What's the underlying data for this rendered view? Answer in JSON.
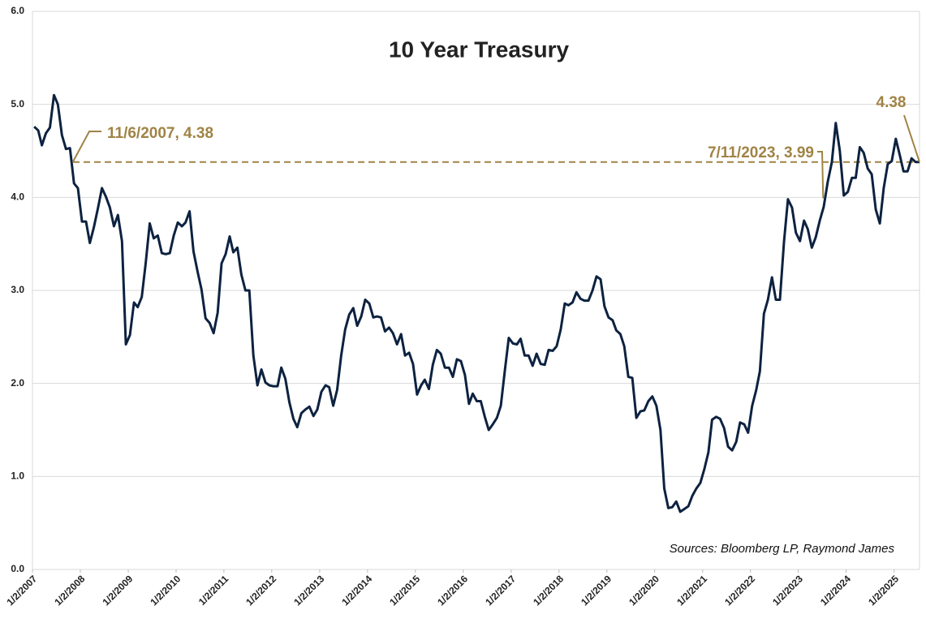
{
  "chart_data": {
    "type": "line",
    "title": "10 Year Treasury",
    "source": "Sources: Bloomberg LP, Raymond James",
    "color": "#0d2240",
    "annotation_color": "#a08345",
    "grid": true,
    "ylim": [
      0,
      6
    ],
    "yticks": [
      {
        "value": 0,
        "label": "0.0"
      },
      {
        "value": 1,
        "label": "1.0"
      },
      {
        "value": 2,
        "label": "2.0"
      },
      {
        "value": 3,
        "label": "3.0"
      },
      {
        "value": 4,
        "label": "4.0"
      },
      {
        "value": 5,
        "label": "5.0"
      },
      {
        "value": 6,
        "label": "6.0"
      }
    ],
    "xlim": [
      "2007-01-02",
      "2025-07-15"
    ],
    "xticks": [
      {
        "value": "2007-01-02",
        "label": "1/2/2007"
      },
      {
        "value": "2008-01-02",
        "label": "1/2/2008"
      },
      {
        "value": "2009-01-02",
        "label": "1/2/2009"
      },
      {
        "value": "2010-01-02",
        "label": "1/2/2010"
      },
      {
        "value": "2011-01-02",
        "label": "1/2/2011"
      },
      {
        "value": "2012-01-02",
        "label": "1/2/2012"
      },
      {
        "value": "2013-01-02",
        "label": "1/2/2013"
      },
      {
        "value": "2014-01-02",
        "label": "1/2/2014"
      },
      {
        "value": "2015-01-02",
        "label": "1/2/2015"
      },
      {
        "value": "2016-01-02",
        "label": "1/2/2016"
      },
      {
        "value": "2017-01-02",
        "label": "1/2/2017"
      },
      {
        "value": "2018-01-02",
        "label": "1/2/2018"
      },
      {
        "value": "2019-01-02",
        "label": "1/2/2019"
      },
      {
        "value": "2020-01-02",
        "label": "1/2/2020"
      },
      {
        "value": "2021-01-02",
        "label": "1/2/2021"
      },
      {
        "value": "2022-01-02",
        "label": "1/2/2022"
      },
      {
        "value": "2023-01-02",
        "label": "1/2/2023"
      },
      {
        "value": "2024-01-02",
        "label": "1/2/2024"
      },
      {
        "value": "2025-01-02",
        "label": "1/2/2025"
      }
    ],
    "reference_line": 4.38,
    "annotations": [
      {
        "text": "11/6/2007, 4.38",
        "x": "2007-11-06",
        "y": 4.38
      },
      {
        "text": "7/11/2023, 3.99",
        "x": "2023-07-11",
        "y": 3.99
      },
      {
        "text": "4.38"
      }
    ],
    "x": [
      "2007-01-15",
      "2007-02-15",
      "2007-03-15",
      "2007-04-15",
      "2007-05-15",
      "2007-06-15",
      "2007-07-15",
      "2007-08-15",
      "2007-09-15",
      "2007-10-15",
      "2007-11-15",
      "2007-12-15",
      "2008-01-15",
      "2008-02-15",
      "2008-03-15",
      "2008-04-15",
      "2008-05-15",
      "2008-06-15",
      "2008-07-15",
      "2008-08-15",
      "2008-09-15",
      "2008-10-15",
      "2008-11-15",
      "2008-12-15",
      "2009-01-15",
      "2009-02-15",
      "2009-03-15",
      "2009-04-15",
      "2009-05-15",
      "2009-06-15",
      "2009-07-15",
      "2009-08-15",
      "2009-09-15",
      "2009-10-15",
      "2009-11-15",
      "2009-12-15",
      "2010-01-15",
      "2010-02-15",
      "2010-03-15",
      "2010-04-15",
      "2010-05-15",
      "2010-06-15",
      "2010-07-15",
      "2010-08-15",
      "2010-09-15",
      "2010-10-15",
      "2010-11-15",
      "2010-12-15",
      "2011-01-15",
      "2011-02-15",
      "2011-03-15",
      "2011-04-15",
      "2011-05-15",
      "2011-06-15",
      "2011-07-15",
      "2011-08-15",
      "2011-09-15",
      "2011-10-15",
      "2011-11-15",
      "2011-12-15",
      "2012-01-15",
      "2012-02-15",
      "2012-03-15",
      "2012-04-15",
      "2012-05-15",
      "2012-06-15",
      "2012-07-15",
      "2012-08-15",
      "2012-09-15",
      "2012-10-15",
      "2012-11-15",
      "2012-12-15",
      "2013-01-15",
      "2013-02-15",
      "2013-03-15",
      "2013-04-15",
      "2013-05-15",
      "2013-06-15",
      "2013-07-15",
      "2013-08-15",
      "2013-09-15",
      "2013-10-15",
      "2013-11-15",
      "2013-12-15",
      "2014-01-15",
      "2014-02-15",
      "2014-03-15",
      "2014-04-15",
      "2014-05-15",
      "2014-06-15",
      "2014-07-15",
      "2014-08-15",
      "2014-09-15",
      "2014-10-15",
      "2014-11-15",
      "2014-12-15",
      "2015-01-15",
      "2015-02-15",
      "2015-03-15",
      "2015-04-15",
      "2015-05-15",
      "2015-06-15",
      "2015-07-15",
      "2015-08-15",
      "2015-09-15",
      "2015-10-15",
      "2015-11-15",
      "2015-12-15",
      "2016-01-15",
      "2016-02-15",
      "2016-03-15",
      "2016-04-15",
      "2016-05-15",
      "2016-06-15",
      "2016-07-15",
      "2016-08-15",
      "2016-09-15",
      "2016-10-15",
      "2016-11-15",
      "2016-12-15",
      "2017-01-15",
      "2017-02-15",
      "2017-03-15",
      "2017-04-15",
      "2017-05-15",
      "2017-06-15",
      "2017-07-15",
      "2017-08-15",
      "2017-09-15",
      "2017-10-15",
      "2017-11-15",
      "2017-12-15",
      "2018-01-15",
      "2018-02-15",
      "2018-03-15",
      "2018-04-15",
      "2018-05-15",
      "2018-06-15",
      "2018-07-15",
      "2018-08-15",
      "2018-09-15",
      "2018-10-15",
      "2018-11-15",
      "2018-12-15",
      "2019-01-15",
      "2019-02-15",
      "2019-03-15",
      "2019-04-15",
      "2019-05-15",
      "2019-06-15",
      "2019-07-15",
      "2019-08-15",
      "2019-09-15",
      "2019-10-15",
      "2019-11-15",
      "2019-12-15",
      "2020-01-15",
      "2020-02-15",
      "2020-03-15",
      "2020-04-15",
      "2020-05-15",
      "2020-06-15",
      "2020-07-15",
      "2020-08-15",
      "2020-09-15",
      "2020-10-15",
      "2020-11-15",
      "2020-12-15",
      "2021-01-15",
      "2021-02-15",
      "2021-03-15",
      "2021-04-15",
      "2021-05-15",
      "2021-06-15",
      "2021-07-15",
      "2021-08-15",
      "2021-09-15",
      "2021-10-15",
      "2021-11-15",
      "2021-12-15",
      "2022-01-15",
      "2022-02-15",
      "2022-03-15",
      "2022-04-15",
      "2022-05-15",
      "2022-06-15",
      "2022-07-15",
      "2022-08-15",
      "2022-09-15",
      "2022-10-15",
      "2022-11-15",
      "2022-12-15",
      "2023-01-15",
      "2023-02-15",
      "2023-03-15",
      "2023-04-15",
      "2023-05-15",
      "2023-06-15",
      "2023-07-15",
      "2023-08-15",
      "2023-09-15",
      "2023-10-15",
      "2023-11-15",
      "2023-12-15",
      "2024-01-15",
      "2024-02-15",
      "2024-03-15",
      "2024-04-15",
      "2024-05-15",
      "2024-06-15",
      "2024-07-15",
      "2024-08-15",
      "2024-09-15",
      "2024-10-15",
      "2024-11-15",
      "2024-12-15",
      "2025-01-15",
      "2025-02-15",
      "2025-03-15",
      "2025-04-15",
      "2025-05-15",
      "2025-06-15",
      "2025-07-15"
    ],
    "values": [
      4.76,
      4.72,
      4.56,
      4.69,
      4.75,
      5.1,
      5.0,
      4.67,
      4.52,
      4.53,
      4.15,
      4.1,
      3.74,
      3.74,
      3.51,
      3.68,
      3.88,
      4.1,
      4.01,
      3.89,
      3.69,
      3.81,
      3.53,
      2.42,
      2.52,
      2.87,
      2.82,
      2.93,
      3.29,
      3.72,
      3.56,
      3.59,
      3.4,
      3.39,
      3.4,
      3.59,
      3.73,
      3.69,
      3.73,
      3.85,
      3.42,
      3.2,
      3.01,
      2.7,
      2.65,
      2.54,
      2.76,
      3.29,
      3.39,
      3.58,
      3.41,
      3.46,
      3.17,
      3.0,
      3.0,
      2.3,
      1.98,
      2.15,
      2.01,
      1.98,
      1.97,
      1.97,
      2.17,
      2.05,
      1.8,
      1.62,
      1.53,
      1.68,
      1.72,
      1.75,
      1.65,
      1.72,
      1.91,
      1.98,
      1.96,
      1.76,
      1.93,
      2.3,
      2.58,
      2.74,
      2.81,
      2.62,
      2.72,
      2.9,
      2.86,
      2.71,
      2.72,
      2.71,
      2.56,
      2.6,
      2.54,
      2.42,
      2.53,
      2.3,
      2.33,
      2.21,
      1.88,
      1.98,
      2.04,
      1.94,
      2.2,
      2.36,
      2.32,
      2.17,
      2.17,
      2.07,
      2.26,
      2.24,
      2.09,
      1.78,
      1.89,
      1.81,
      1.81,
      1.64,
      1.5,
      1.56,
      1.63,
      1.76,
      2.14,
      2.49,
      2.43,
      2.42,
      2.48,
      2.3,
      2.3,
      2.19,
      2.32,
      2.21,
      2.2,
      2.36,
      2.35,
      2.4,
      2.58,
      2.86,
      2.84,
      2.87,
      2.98,
      2.91,
      2.89,
      2.89,
      3.0,
      3.15,
      3.12,
      2.83,
      2.71,
      2.68,
      2.57,
      2.53,
      2.4,
      2.07,
      2.06,
      1.63,
      1.7,
      1.71,
      1.81,
      1.86,
      1.76,
      1.5,
      0.87,
      0.66,
      0.67,
      0.73,
      0.62,
      0.65,
      0.68,
      0.79,
      0.87,
      0.93,
      1.08,
      1.26,
      1.61,
      1.64,
      1.62,
      1.52,
      1.32,
      1.28,
      1.37,
      1.58,
      1.56,
      1.47,
      1.76,
      1.93,
      2.13,
      2.75,
      2.9,
      3.14,
      2.9,
      2.9,
      3.52,
      3.98,
      3.89,
      3.62,
      3.53,
      3.75,
      3.66,
      3.46,
      3.57,
      3.75,
      3.9,
      4.17,
      4.38,
      4.8,
      4.5,
      4.02,
      4.06,
      4.21,
      4.21,
      4.54,
      4.48,
      4.31,
      4.25,
      3.87,
      3.72,
      4.1,
      4.36,
      4.39,
      4.63,
      4.45,
      4.28,
      4.28,
      4.42,
      4.38,
      4.38
    ]
  }
}
